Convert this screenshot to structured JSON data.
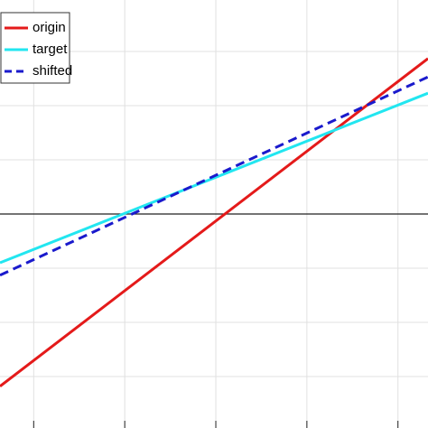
{
  "chart_data": {
    "type": "line",
    "x": [
      -0.37,
      4.33
    ],
    "series": [
      {
        "name": "origin",
        "color": "#e41a1a",
        "dash": false,
        "values": [
          -3.18,
          2.87
        ]
      },
      {
        "name": "target",
        "color": "#22e6f0",
        "dash": false,
        "values": [
          -0.9,
          2.23
        ]
      },
      {
        "name": "shifted",
        "color": "#1a1acc",
        "dash": true,
        "values": [
          -1.13,
          2.53
        ]
      }
    ],
    "xlim": [
      -0.37,
      4.33
    ],
    "ylim": [
      -3.95,
      3.95
    ],
    "xticks": [
      0,
      1,
      2,
      3,
      4
    ],
    "yticks": [
      -3,
      -2,
      -1,
      0,
      1,
      2,
      3
    ],
    "hline": 0,
    "grid": true,
    "legend": "upper left"
  }
}
